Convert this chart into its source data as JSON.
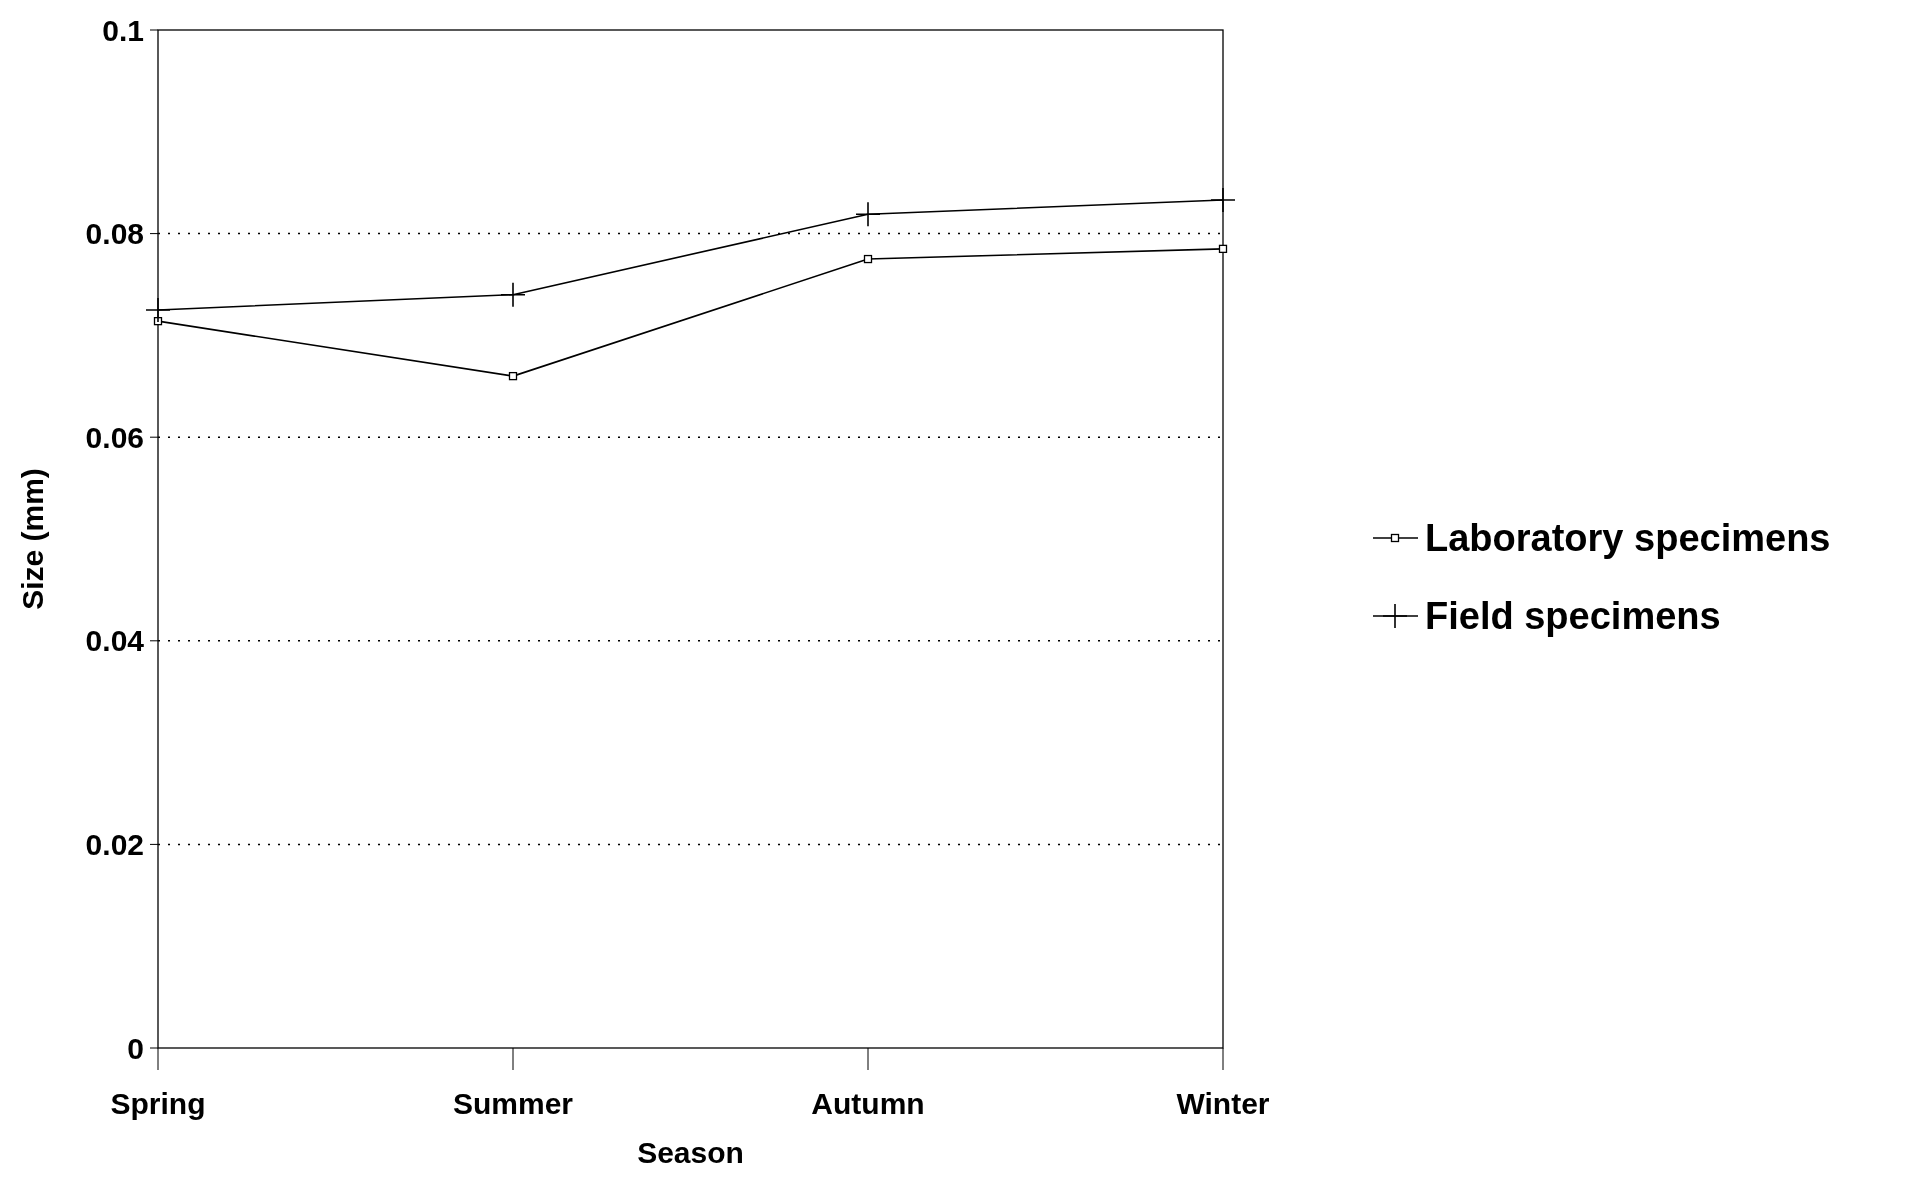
{
  "chart_data": {
    "type": "line",
    "xlabel": "Season",
    "ylabel": "Size (mm)",
    "categories": [
      "Spring",
      "Summer",
      "Autumn",
      "Winter"
    ],
    "series": [
      {
        "name": "Laboratory specimens",
        "color": "#000000",
        "marker": "square",
        "values": [
          0.0714,
          0.066,
          0.0775,
          0.0785
        ]
      },
      {
        "name": "Field specimens",
        "color": "#000000",
        "marker": "cross",
        "values": [
          0.0725,
          0.074,
          0.0819,
          0.0833
        ]
      }
    ],
    "ylim": [
      0,
      0.1
    ],
    "yticks": [
      0,
      0.02,
      0.04,
      0.06,
      0.08,
      0.1
    ],
    "grid": "y",
    "legend": "right"
  }
}
